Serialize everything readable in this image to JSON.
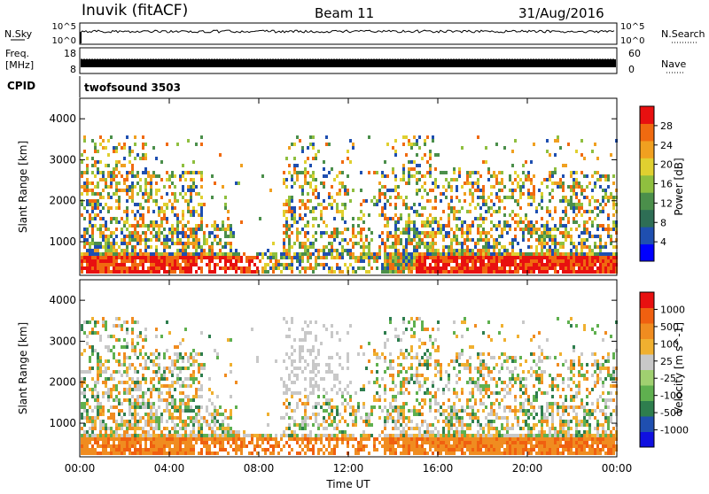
{
  "header": {
    "station": "Inuvik (fitACF)",
    "beam": "Beam 11",
    "date": "31/Aug/2016"
  },
  "top_panels": {
    "nsky_label": "N.Sky",
    "nsky_ticks": [
      "10^5",
      "10^0"
    ],
    "nsearch_label": "N.Search",
    "nsearch_ticks": [
      "10^5",
      "10^0"
    ],
    "freq_label_1": "Freq.",
    "freq_label_2": "[MHz]",
    "freq_ticks": [
      "18",
      "8"
    ],
    "nave_label": "Nave",
    "nave_ticks": [
      "60",
      "0"
    ],
    "cpid_label": "CPID",
    "cpid_value": "twofsound 3503"
  },
  "colors": {
    "power": [
      "#0000ff",
      "#1f4fb0",
      "#2e6e55",
      "#4b8f4b",
      "#8fbf3f",
      "#e0d030",
      "#f0a020",
      "#f06a10",
      "#e81010"
    ],
    "velocity": [
      "#1010e0",
      "#1f4fb0",
      "#2e7e4e",
      "#5fb04f",
      "#a0d070",
      "#c8c8c8",
      "#f0b030",
      "#f08c20",
      "#f06010",
      "#e81010"
    ]
  },
  "chart_data": [
    {
      "type": "heatmap",
      "name": "power-panel",
      "ylabel": "Slant Range [km]",
      "xlabel": "",
      "yticks": [
        "4000",
        "3000",
        "2000",
        "1000"
      ],
      "xticks": [
        "00:00",
        "04:00",
        "08:00",
        "12:00",
        "16:00",
        "20:00",
        "00:00"
      ],
      "ylim": [
        180,
        4500
      ],
      "xlim_hours": [
        0,
        24
      ],
      "colorbar_label": "Power [dB]",
      "colorbar_ticks": [
        "28",
        "24",
        "20",
        "16",
        "12",
        "8",
        "4"
      ],
      "colorbar_range": [
        0,
        32
      ]
    },
    {
      "type": "heatmap",
      "name": "velocity-panel",
      "ylabel": "Slant Range [km]",
      "xlabel": "Time UT",
      "yticks": [
        "4000",
        "3000",
        "2000",
        "1000"
      ],
      "xticks": [
        "00:00",
        "04:00",
        "08:00",
        "12:00",
        "16:00",
        "20:00",
        "00:00"
      ],
      "ylim": [
        180,
        4500
      ],
      "xlim_hours": [
        0,
        24
      ],
      "colorbar_label": "Velocity [m s^-1]",
      "colorbar_ticks": [
        "1000",
        "500",
        "100",
        "25",
        "-25",
        "-100",
        "-500",
        "-1000"
      ]
    }
  ]
}
